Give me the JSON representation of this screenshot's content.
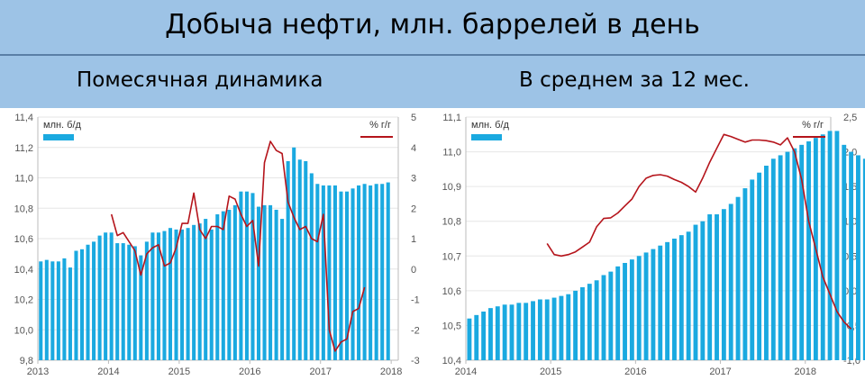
{
  "header": {
    "title": "Добыча нефти, млн. баррелей в день",
    "left_subtitle": "Помесячная динамика",
    "right_subtitle": "В среднем за 12 мес."
  },
  "colors": {
    "bar": "#1aa9e0",
    "line": "#b5141b",
    "banner": "#9dc3e6"
  },
  "chart_data": [
    {
      "type": "bar",
      "title": "Помесячная динамика",
      "xlabel": "",
      "ylabel": "",
      "legend": {
        "bars": "млн. б/д",
        "line": "% г/г",
        "placement": "top"
      },
      "x_start": 2013.0,
      "x_step": 0.0833,
      "xticks": [
        "2013",
        "2014",
        "2015",
        "2016",
        "2017",
        "2018"
      ],
      "yticks_left": [
        "9,8",
        "10,0",
        "10,2",
        "10,4",
        "10,6",
        "10,8",
        "11,0",
        "11,2",
        "11,4"
      ],
      "yticks_right": [
        "-3",
        "-2",
        "-1",
        "0",
        "1",
        "2",
        "3",
        "4",
        "5"
      ],
      "ylim_left": [
        9.8,
        11.4
      ],
      "ylim_right": [
        -3,
        5
      ],
      "series": [
        {
          "name": "млн. б/д",
          "kind": "bar",
          "axis": "left",
          "values": [
            10.45,
            10.46,
            10.45,
            10.45,
            10.47,
            10.41,
            10.52,
            10.53,
            10.56,
            10.58,
            10.62,
            10.64,
            10.64,
            10.57,
            10.57,
            10.56,
            10.55,
            10.49,
            10.58,
            10.64,
            10.64,
            10.65,
            10.67,
            10.66,
            10.66,
            10.67,
            10.69,
            10.7,
            10.73,
            10.66,
            10.76,
            10.78,
            10.79,
            10.82,
            10.91,
            10.91,
            10.9,
            10.81,
            10.82,
            10.82,
            10.79,
            10.73,
            11.11,
            11.2,
            11.12,
            11.11,
            11.03,
            10.96,
            10.95,
            10.95,
            10.95,
            10.91,
            10.91,
            10.93,
            10.95,
            10.96,
            10.95,
            10.96,
            10.96,
            10.97
          ]
        },
        {
          "name": "% г/г",
          "kind": "line",
          "axis": "right",
          "start_index": 12,
          "values": [
            1.8,
            1.1,
            1.2,
            0.9,
            0.6,
            -0.2,
            0.5,
            0.7,
            0.8,
            0.1,
            0.2,
            0.7,
            1.5,
            1.5,
            2.5,
            1.3,
            1.0,
            1.4,
            1.4,
            1.3,
            2.4,
            2.3,
            1.8,
            1.4,
            1.6,
            0.1,
            3.5,
            4.2,
            3.9,
            3.8,
            2.2,
            1.7,
            1.3,
            1.4,
            1.0,
            0.9,
            1.8,
            -2.0,
            -2.7,
            -2.4,
            -2.3,
            -1.4,
            -1.3,
            -0.6
          ]
        }
      ]
    },
    {
      "type": "bar",
      "title": "В среднем за 12 мес.",
      "xlabel": "",
      "ylabel": "",
      "legend": {
        "bars": "млн. б/д",
        "line": "% г/г",
        "placement": "top"
      },
      "x_start": 2014.0,
      "x_step": 0.0833,
      "xticks": [
        "2014",
        "2015",
        "2016",
        "2017",
        "2018"
      ],
      "yticks_left": [
        "10,4",
        "10,5",
        "10,6",
        "10,7",
        "10,8",
        "10,9",
        "11,0",
        "11,1"
      ],
      "yticks_right": [
        "-1,0",
        "-0,5",
        "0,0",
        "0,5",
        "1,0",
        "1,5",
        "2,0",
        "2,5"
      ],
      "ylim_left": [
        10.4,
        11.1
      ],
      "ylim_right": [
        -1.0,
        2.5
      ],
      "series": [
        {
          "name": "млн. б/д",
          "kind": "bar",
          "axis": "left",
          "values": [
            10.52,
            10.53,
            10.54,
            10.55,
            10.555,
            10.56,
            10.56,
            10.565,
            10.565,
            10.57,
            10.575,
            10.575,
            10.58,
            10.585,
            10.59,
            10.6,
            10.61,
            10.62,
            10.63,
            10.645,
            10.655,
            10.67,
            10.68,
            10.69,
            10.7,
            10.71,
            10.72,
            10.73,
            10.74,
            10.75,
            10.76,
            10.77,
            10.79,
            10.8,
            10.82,
            10.82,
            10.835,
            10.85,
            10.87,
            10.895,
            10.92,
            10.94,
            10.96,
            10.98,
            10.99,
            11.0,
            11.01,
            11.02,
            11.03,
            11.04,
            11.05,
            11.06,
            11.06,
            11.02,
            11.0,
            10.99,
            10.98,
            10.97,
            10.955,
            10.945
          ]
        },
        {
          "name": "% г/г",
          "kind": "line",
          "axis": "right",
          "start_index": 11,
          "values": [
            0.68,
            0.52,
            0.5,
            0.52,
            0.56,
            0.63,
            0.7,
            0.92,
            1.04,
            1.05,
            1.12,
            1.22,
            1.32,
            1.5,
            1.62,
            1.66,
            1.67,
            1.65,
            1.6,
            1.56,
            1.5,
            1.42,
            1.62,
            1.85,
            2.05,
            2.25,
            2.22,
            2.18,
            2.14,
            2.17,
            2.17,
            2.16,
            2.14,
            2.1,
            2.2,
            2.0,
            1.6,
            1.0,
            0.6,
            0.2,
            -0.05,
            -0.3,
            -0.45,
            -0.55
          ]
        }
      ]
    }
  ]
}
